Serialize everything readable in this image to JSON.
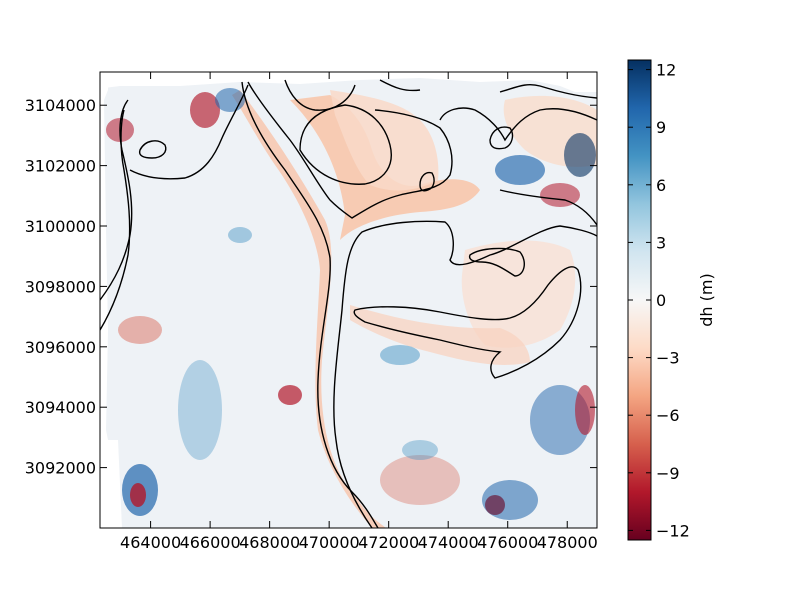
{
  "chart_data": {
    "type": "heatmap",
    "title": "",
    "xlabel": "",
    "ylabel": "",
    "colorbar_label": "dh (m)",
    "xlim": [
      462300,
      479000
    ],
    "ylim": [
      3090000,
      3105100
    ],
    "x_ticks": [
      464000,
      466000,
      468000,
      470000,
      472000,
      474000,
      476000,
      478000
    ],
    "y_ticks": [
      3092000,
      3094000,
      3096000,
      3098000,
      3100000,
      3102000,
      3104000
    ],
    "colorbar_range": [
      -12.5,
      12.5
    ],
    "colorbar_ticks": [
      12,
      9,
      6,
      3,
      0,
      -3,
      -6,
      -9,
      -12
    ],
    "colormap": "RdBu",
    "colormap_stops": [
      "#67001f",
      "#b2182b",
      "#d6604d",
      "#f4a582",
      "#fddbc7",
      "#f7f7f7",
      "#d1e5f0",
      "#92c5de",
      "#4393c3",
      "#2166ac",
      "#053061"
    ],
    "grid": false,
    "contour_color": "#000000"
  }
}
